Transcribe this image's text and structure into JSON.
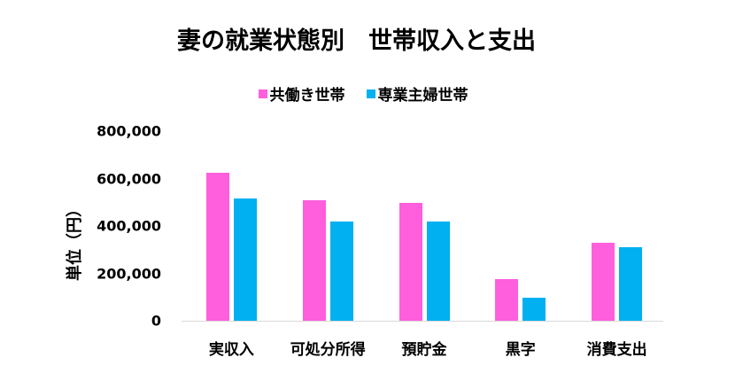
{
  "chart_data": {
    "type": "bar",
    "title": "妻の就業状態別　世帯収入と支出",
    "xlabel": "",
    "ylabel": "単位（円）",
    "categories": [
      "実収入",
      "可処分所得",
      "預貯金",
      "黒字",
      "消費支出"
    ],
    "series": [
      {
        "name": "共働き世帯",
        "color": "#FF5EDC",
        "values": [
          625000,
          509000,
          499000,
          176000,
          330000
        ]
      },
      {
        "name": "専業主婦世帯",
        "color": "#00B0F0",
        "values": [
          517000,
          419000,
          419000,
          99000,
          311000
        ]
      }
    ],
    "ylim": [
      0,
      800000
    ],
    "yticks": [
      "0",
      "200,000",
      "400,000",
      "600,000",
      "800,000"
    ],
    "grid": false,
    "legend_position": "top"
  },
  "title": "妻の就業状態別　世帯収入と支出",
  "legend": [
    {
      "label": "共働き世帯",
      "color": "#FF5EDC"
    },
    {
      "label": "専業主婦世帯",
      "color": "#00B0F0"
    }
  ],
  "ylabel": "単位（円）",
  "yticks": [
    "800,000",
    "600,000",
    "400,000",
    "200,000",
    "0"
  ],
  "categories": [
    "実収入",
    "可処分所得",
    "預貯金",
    "黒字",
    "消費支出"
  ]
}
